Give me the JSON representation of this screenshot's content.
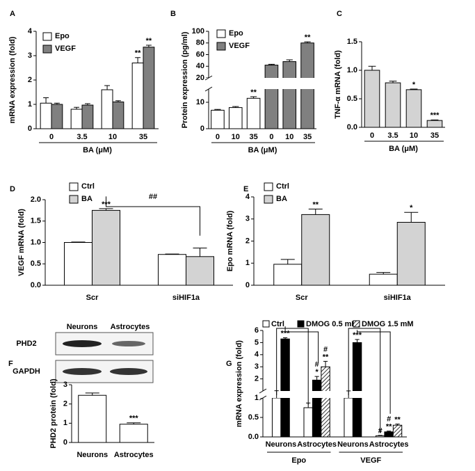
{
  "chart_data": [
    {
      "panel": "A",
      "type": "bar",
      "ylabel": "mRNA expression (fold)",
      "xlabel": "BA (μM)",
      "categories": [
        "0",
        "3.5",
        "10",
        "35"
      ],
      "ylim": [
        0,
        4
      ],
      "yticks": [
        0,
        1,
        2,
        3,
        4
      ],
      "legend": "upper left",
      "series": [
        {
          "name": "Epo",
          "color": "#ffffff",
          "values": [
            1.05,
            0.8,
            1.6,
            2.7
          ],
          "errors": [
            0.22,
            0.08,
            0.17,
            0.22
          ],
          "annotations": [
            null,
            null,
            null,
            [
              "**"
            ]
          ]
        },
        {
          "name": "VEGF",
          "color": "#808080",
          "values": [
            1.0,
            0.97,
            1.1,
            3.35
          ],
          "errors": [
            0.05,
            0.06,
            0.05,
            0.08
          ],
          "annotations": [
            null,
            null,
            null,
            [
              "**"
            ]
          ]
        }
      ]
    },
    {
      "panel": "B",
      "type": "bar",
      "ylabel": "Protein expression (pg/ml)",
      "xlabel": "BA (μM)",
      "categories": [
        "0",
        "10",
        "35",
        "0",
        "10",
        "35"
      ],
      "ylim": [
        0,
        100
      ],
      "yticks": [
        0,
        10,
        20,
        40,
        60,
        80,
        100
      ],
      "axis_break": [
        15,
        20
      ],
      "legend": "upper left",
      "series": [
        {
          "name": "Epo",
          "color": "#ffffff",
          "values": [
            7,
            8,
            11.5,
            null,
            null,
            null
          ],
          "errors": [
            0.3,
            0.4,
            0.6,
            null,
            null,
            null
          ],
          "annotations": [
            null,
            null,
            [
              "**"
            ],
            null,
            null,
            null
          ]
        },
        {
          "name": "VEGF",
          "color": "#808080",
          "values": [
            null,
            null,
            null,
            42,
            48,
            80
          ],
          "errors": [
            null,
            null,
            null,
            1.5,
            3,
            2
          ],
          "annotations": [
            null,
            null,
            null,
            null,
            null,
            [
              "**"
            ]
          ]
        }
      ]
    },
    {
      "panel": "C",
      "type": "bar",
      "ylabel": "TNF-α mRNA (fold)",
      "xlabel": "BA (μM)",
      "categories": [
        "0",
        "3.5",
        "10",
        "35"
      ],
      "ylim": [
        0,
        1.5
      ],
      "yticks": [
        {
          "value": 0,
          "label": "0.0"
        },
        {
          "value": 0.5,
          "label": "0.5"
        },
        {
          "value": 1,
          "label": "1.0"
        },
        {
          "value": 1.5,
          "label": "1.5"
        }
      ],
      "color": "#d3d3d3",
      "values": [
        1.0,
        0.78,
        0.66,
        0.12
      ],
      "errors": [
        0.07,
        0.03,
        0.01,
        0.01
      ],
      "annotations": [
        null,
        null,
        [
          "*"
        ],
        [
          "***"
        ]
      ]
    },
    {
      "panel": "D",
      "type": "bar",
      "ylabel": "VEGF mRNA (fold)",
      "categories": [
        "Scr",
        "siHIF1a"
      ],
      "ylim": [
        0,
        2
      ],
      "yticks": [
        {
          "value": 0,
          "label": "0.0"
        },
        {
          "value": 0.5,
          "label": "0.5"
        },
        {
          "value": 1,
          "label": "1.0"
        },
        {
          "value": 1.5,
          "label": "1.5"
        },
        {
          "value": 2,
          "label": "2.0"
        }
      ],
      "legend": "upper left",
      "bracket_label": "##",
      "series": [
        {
          "name": "Ctrl",
          "color": "#ffffff",
          "values": [
            1.0,
            0.72
          ],
          "errors": [
            0.01,
            0.01
          ],
          "annotations": [
            null,
            null
          ]
        },
        {
          "name": "BA",
          "color": "#d3d3d3",
          "values": [
            1.75,
            0.67
          ],
          "errors": [
            0.04,
            0.2
          ],
          "annotations": [
            [
              "***"
            ],
            null
          ]
        }
      ]
    },
    {
      "panel": "E",
      "type": "bar",
      "ylabel": "Epo mRNA (fold)",
      "categories": [
        "Scr",
        "siHIF1a"
      ],
      "ylim": [
        0,
        4
      ],
      "yticks": [
        0,
        1,
        2,
        3,
        4
      ],
      "legend": "upper left",
      "series": [
        {
          "name": "Ctrl",
          "color": "#ffffff",
          "values": [
            0.95,
            0.5
          ],
          "errors": [
            0.22,
            0.08
          ],
          "annotations": [
            null,
            null
          ]
        },
        {
          "name": "BA",
          "color": "#d3d3d3",
          "values": [
            3.2,
            2.85
          ],
          "errors": [
            0.25,
            0.45
          ],
          "annotations": [
            [
              "**"
            ],
            [
              "*"
            ]
          ]
        }
      ]
    },
    {
      "panel": "F",
      "type": "bar",
      "ylabel": "PHD2 protein (fold)",
      "categories": [
        "Neurons",
        "Astrocytes"
      ],
      "ylim": [
        0,
        3
      ],
      "yticks": [
        0,
        1,
        2,
        3
      ],
      "blot_rows": [
        "PHD2",
        "GAPDH"
      ],
      "blot_columns": [
        "Neurons",
        "Astrocytes"
      ],
      "color": "#ffffff",
      "values": [
        2.45,
        0.95
      ],
      "errors": [
        0.12,
        0.07
      ],
      "annotations": [
        null,
        [
          "***"
        ]
      ]
    },
    {
      "panel": "G",
      "type": "bar",
      "ylabel": "mRNA expression (fold)",
      "categories": [
        "Neurons",
        "Astrocytes",
        "Neurons",
        "Astrocytes"
      ],
      "groups": [
        "Epo",
        "VEGF"
      ],
      "ylim": [
        0,
        6
      ],
      "axis_break": [
        1,
        1
      ],
      "legend": "top",
      "yticks": [
        {
          "value": 0,
          "label": "0.0"
        },
        {
          "value": 0.5,
          "label": "0.5"
        },
        1,
        2,
        3,
        4,
        5,
        6
      ],
      "series": [
        {
          "name": "Ctrl",
          "color": "#ffffff",
          "values": [
            1.0,
            0.75,
            1.0,
            0.03
          ],
          "errors": [
            0.02,
            0.12,
            0.01,
            0.01
          ],
          "annotations": [
            null,
            null,
            null,
            [
              "#"
            ]
          ]
        },
        {
          "name": "DMOG 0.5 mM",
          "color": "#000000",
          "values": [
            5.3,
            1.9,
            5.0,
            0.13
          ],
          "errors": [
            0.1,
            0.3,
            0.25,
            0.02
          ],
          "annotations": [
            [
              "***"
            ],
            [
              "#",
              "*"
            ],
            [
              "***"
            ],
            [
              "#",
              "**"
            ]
          ]
        },
        {
          "name": "DMOG 1.5 mM",
          "color": "#ffffff",
          "hatch": true,
          "values": [
            null,
            3.0,
            null,
            0.3
          ],
          "errors": [
            null,
            0.45,
            null,
            0.03
          ],
          "annotations": [
            null,
            [
              "#",
              "**"
            ],
            null,
            [
              "**"
            ]
          ]
        }
      ]
    }
  ]
}
